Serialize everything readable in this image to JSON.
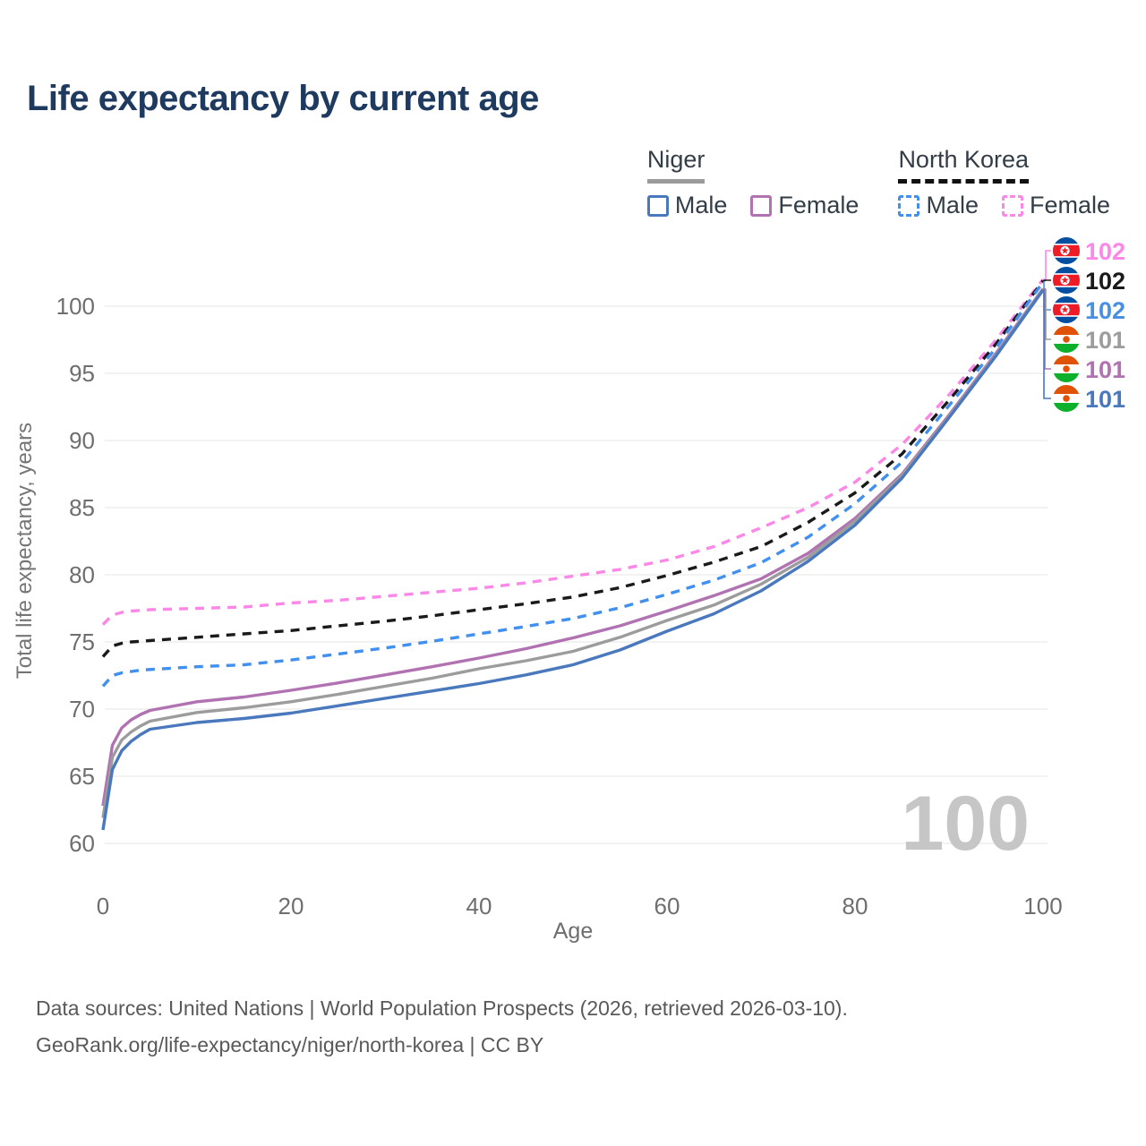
{
  "header": {
    "title": "Life expectancy by current age"
  },
  "legend": {
    "groups": [
      {
        "key": "niger",
        "label": "Niger",
        "line_style": "solid",
        "items": [
          {
            "key": "niger-male",
            "label": "Male"
          },
          {
            "key": "niger-female",
            "label": "Female"
          }
        ]
      },
      {
        "key": "north-korea",
        "label": "North Korea",
        "line_style": "dashed",
        "items": [
          {
            "key": "nk-male",
            "label": "Male"
          },
          {
            "key": "nk-female",
            "label": "Female"
          }
        ]
      }
    ]
  },
  "chart_data": {
    "type": "line",
    "title": "Life expectancy by current age",
    "xlabel": "Age",
    "ylabel": "Total life expectancy, years",
    "xlim": [
      0,
      100
    ],
    "ylim": [
      60,
      102
    ],
    "xticks": [
      0,
      20,
      40,
      60,
      80,
      100
    ],
    "yticks": [
      60,
      65,
      70,
      75,
      80,
      85,
      90,
      95,
      100
    ],
    "grid": "horizontal",
    "watermark": "100",
    "x": [
      0,
      1,
      2,
      3,
      4,
      5,
      10,
      15,
      20,
      25,
      30,
      35,
      40,
      45,
      50,
      55,
      60,
      65,
      70,
      75,
      80,
      85,
      90,
      95,
      100
    ],
    "series": [
      {
        "key": "nk-female",
        "name": "North Korea Female",
        "color": "#fb87e6",
        "dash": true,
        "values": [
          76.3,
          77.0,
          77.2,
          77.3,
          77.35,
          77.4,
          77.5,
          77.6,
          77.9,
          78.1,
          78.4,
          78.7,
          79.0,
          79.4,
          79.9,
          80.4,
          81.1,
          82.1,
          83.5,
          85.0,
          86.9,
          89.7,
          93.4,
          97.5,
          102.0
        ]
      },
      {
        "key": "nk-total",
        "name": "North Korea Both sexes",
        "color": "#1a1a1a",
        "dash": true,
        "values": [
          73.9,
          74.7,
          74.9,
          75.0,
          75.05,
          75.1,
          75.35,
          75.6,
          75.85,
          76.2,
          76.55,
          76.95,
          77.4,
          77.85,
          78.35,
          79.05,
          79.95,
          80.95,
          82.1,
          83.9,
          86.1,
          89.0,
          93.0,
          97.2,
          101.9
        ]
      },
      {
        "key": "nk-male",
        "name": "North Korea Male",
        "color": "#4190ef",
        "dash": true,
        "values": [
          71.7,
          72.5,
          72.7,
          72.8,
          72.9,
          72.95,
          73.15,
          73.3,
          73.65,
          74.1,
          74.55,
          75.05,
          75.6,
          76.15,
          76.75,
          77.55,
          78.55,
          79.6,
          80.9,
          82.8,
          85.3,
          88.4,
          92.6,
          96.9,
          101.8
        ]
      },
      {
        "key": "niger-female",
        "name": "Niger Female",
        "color": "#b172b2",
        "dash": false,
        "values": [
          62.8,
          67.3,
          68.6,
          69.2,
          69.6,
          69.9,
          70.55,
          70.9,
          71.4,
          71.95,
          72.55,
          73.15,
          73.8,
          74.5,
          75.3,
          76.2,
          77.3,
          78.45,
          79.7,
          81.6,
          84.2,
          87.5,
          91.9,
          96.5,
          101.3
        ]
      },
      {
        "key": "niger-total",
        "name": "Niger Both sexes",
        "color": "#9c9c9c",
        "dash": false,
        "values": [
          61.9,
          66.4,
          67.7,
          68.3,
          68.75,
          69.1,
          69.75,
          70.1,
          70.55,
          71.1,
          71.7,
          72.3,
          73.0,
          73.6,
          74.3,
          75.35,
          76.6,
          77.75,
          79.3,
          81.3,
          84.0,
          87.4,
          91.8,
          96.4,
          101.25
        ]
      },
      {
        "key": "niger-male",
        "name": "Niger Male",
        "color": "#4a78bd",
        "dash": false,
        "values": [
          61.0,
          65.5,
          66.9,
          67.6,
          68.1,
          68.5,
          69.0,
          69.3,
          69.7,
          70.25,
          70.8,
          71.35,
          71.9,
          72.55,
          73.3,
          74.4,
          75.8,
          77.1,
          78.8,
          81.0,
          83.7,
          87.2,
          91.7,
          96.3,
          101.2
        ]
      }
    ],
    "end_labels": [
      {
        "series": "nk-female",
        "value": "102",
        "flag": "north-korea",
        "color": "#fb87e6"
      },
      {
        "series": "nk-total",
        "value": "102",
        "flag": "north-korea",
        "color": "#1a1a1a"
      },
      {
        "series": "nk-male",
        "value": "102",
        "flag": "north-korea",
        "color": "#4a90e2"
      },
      {
        "series": "niger-total",
        "value": "101",
        "flag": "niger",
        "color": "#9c9c9c"
      },
      {
        "series": "niger-female",
        "value": "101",
        "flag": "niger",
        "color": "#b172b2"
      },
      {
        "series": "niger-male",
        "value": "101",
        "flag": "niger",
        "color": "#4a78bd"
      }
    ]
  },
  "footer": {
    "line1": "Data sources: United Nations | World Population Prospects (2026, retrieved 2026-03-10).",
    "line2": "GeoRank.org/life-expectancy/niger/north-korea | CC BY"
  }
}
